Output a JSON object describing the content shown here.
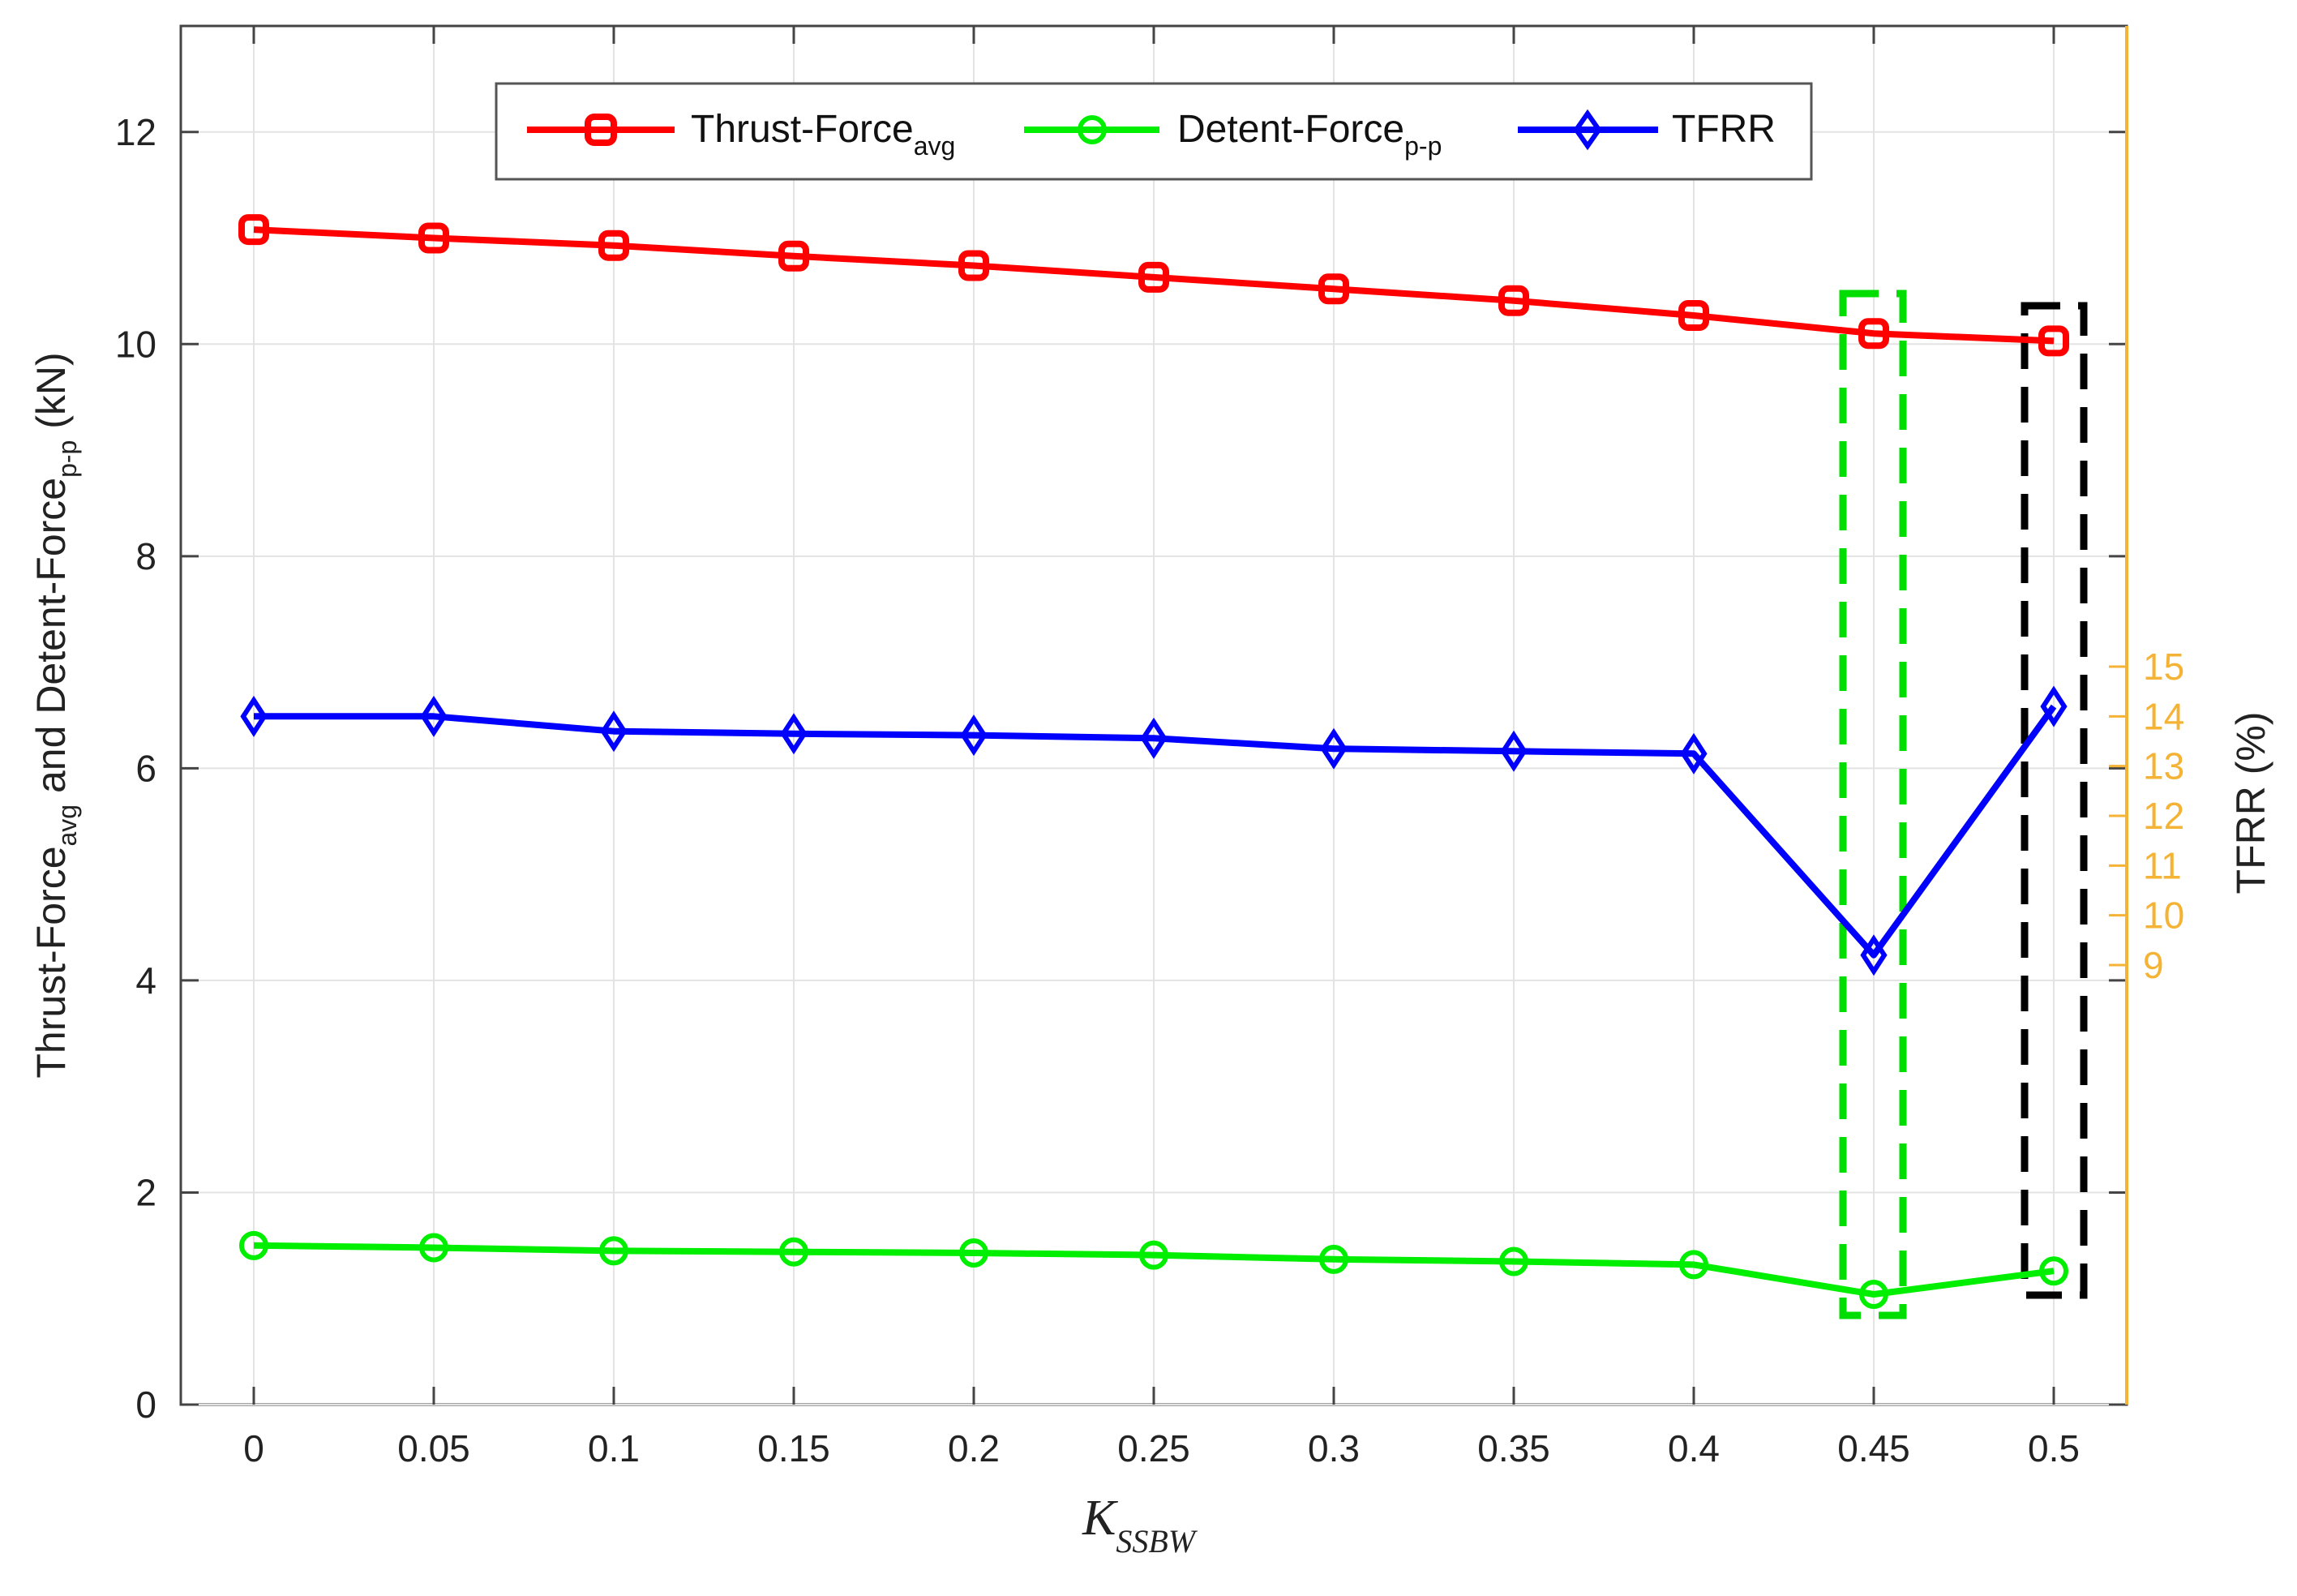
{
  "chart_data": {
    "type": "line",
    "x": [
      0,
      0.05,
      0.1,
      0.15,
      0.2,
      0.25,
      0.3,
      0.35,
      0.4,
      0.45,
      0.5
    ],
    "x_tick_labels": [
      "0",
      "0.05",
      "0.1",
      "0.15",
      "0.2",
      "0.25",
      "0.3",
      "0.35",
      "0.4",
      "0.45",
      "0.5"
    ],
    "xlabel": {
      "main": "K",
      "sub": "SSBW"
    },
    "ylabel": {
      "part1": "Thrust-Force",
      "sub1": "avg",
      "part2": " and Detent-Force",
      "sub2": "p-p",
      "part3": " (kN)"
    },
    "ylim": [
      0,
      13
    ],
    "y_ticks": [
      0,
      2,
      4,
      6,
      8,
      10,
      12
    ],
    "y_tick_labels": [
      "0",
      "2",
      "4",
      "6",
      "8",
      "10",
      "12"
    ],
    "right_axis": {
      "label": "TFRR (%)",
      "tick_labels": [
        "9",
        "10",
        "11",
        "12",
        "13",
        "14",
        "15"
      ],
      "tick_values": [
        9,
        10,
        11,
        12,
        13,
        14,
        15
      ],
      "color": "#F5B335"
    },
    "series": [
      {
        "name": "Thrust-Force",
        "name_sub": "avg",
        "axis": "left",
        "color": "#FF0000",
        "marker": "square",
        "values": [
          11.08,
          11.0,
          10.93,
          10.83,
          10.74,
          10.63,
          10.52,
          10.41,
          10.27,
          10.1,
          10.03
        ]
      },
      {
        "name": "Detent-Force",
        "name_sub": "p-p",
        "axis": "left",
        "color": "#00EE00",
        "marker": "circle",
        "values": [
          1.5,
          1.48,
          1.45,
          1.44,
          1.43,
          1.41,
          1.37,
          1.35,
          1.32,
          1.04,
          1.26
        ]
      },
      {
        "name": "TFRR",
        "name_sub": "",
        "axis": "right",
        "color": "#0000FF",
        "marker": "diamond",
        "values": [
          14.0,
          14.0,
          13.7,
          13.65,
          13.62,
          13.56,
          13.35,
          13.3,
          13.25,
          9.2,
          14.2
        ]
      }
    ],
    "highlights": [
      {
        "x": 0.45,
        "color": "#00DD00",
        "style": "dashed"
      },
      {
        "x": 0.5,
        "color": "#000000",
        "style": "dashed"
      }
    ],
    "grid": true,
    "legend_position": "top"
  }
}
